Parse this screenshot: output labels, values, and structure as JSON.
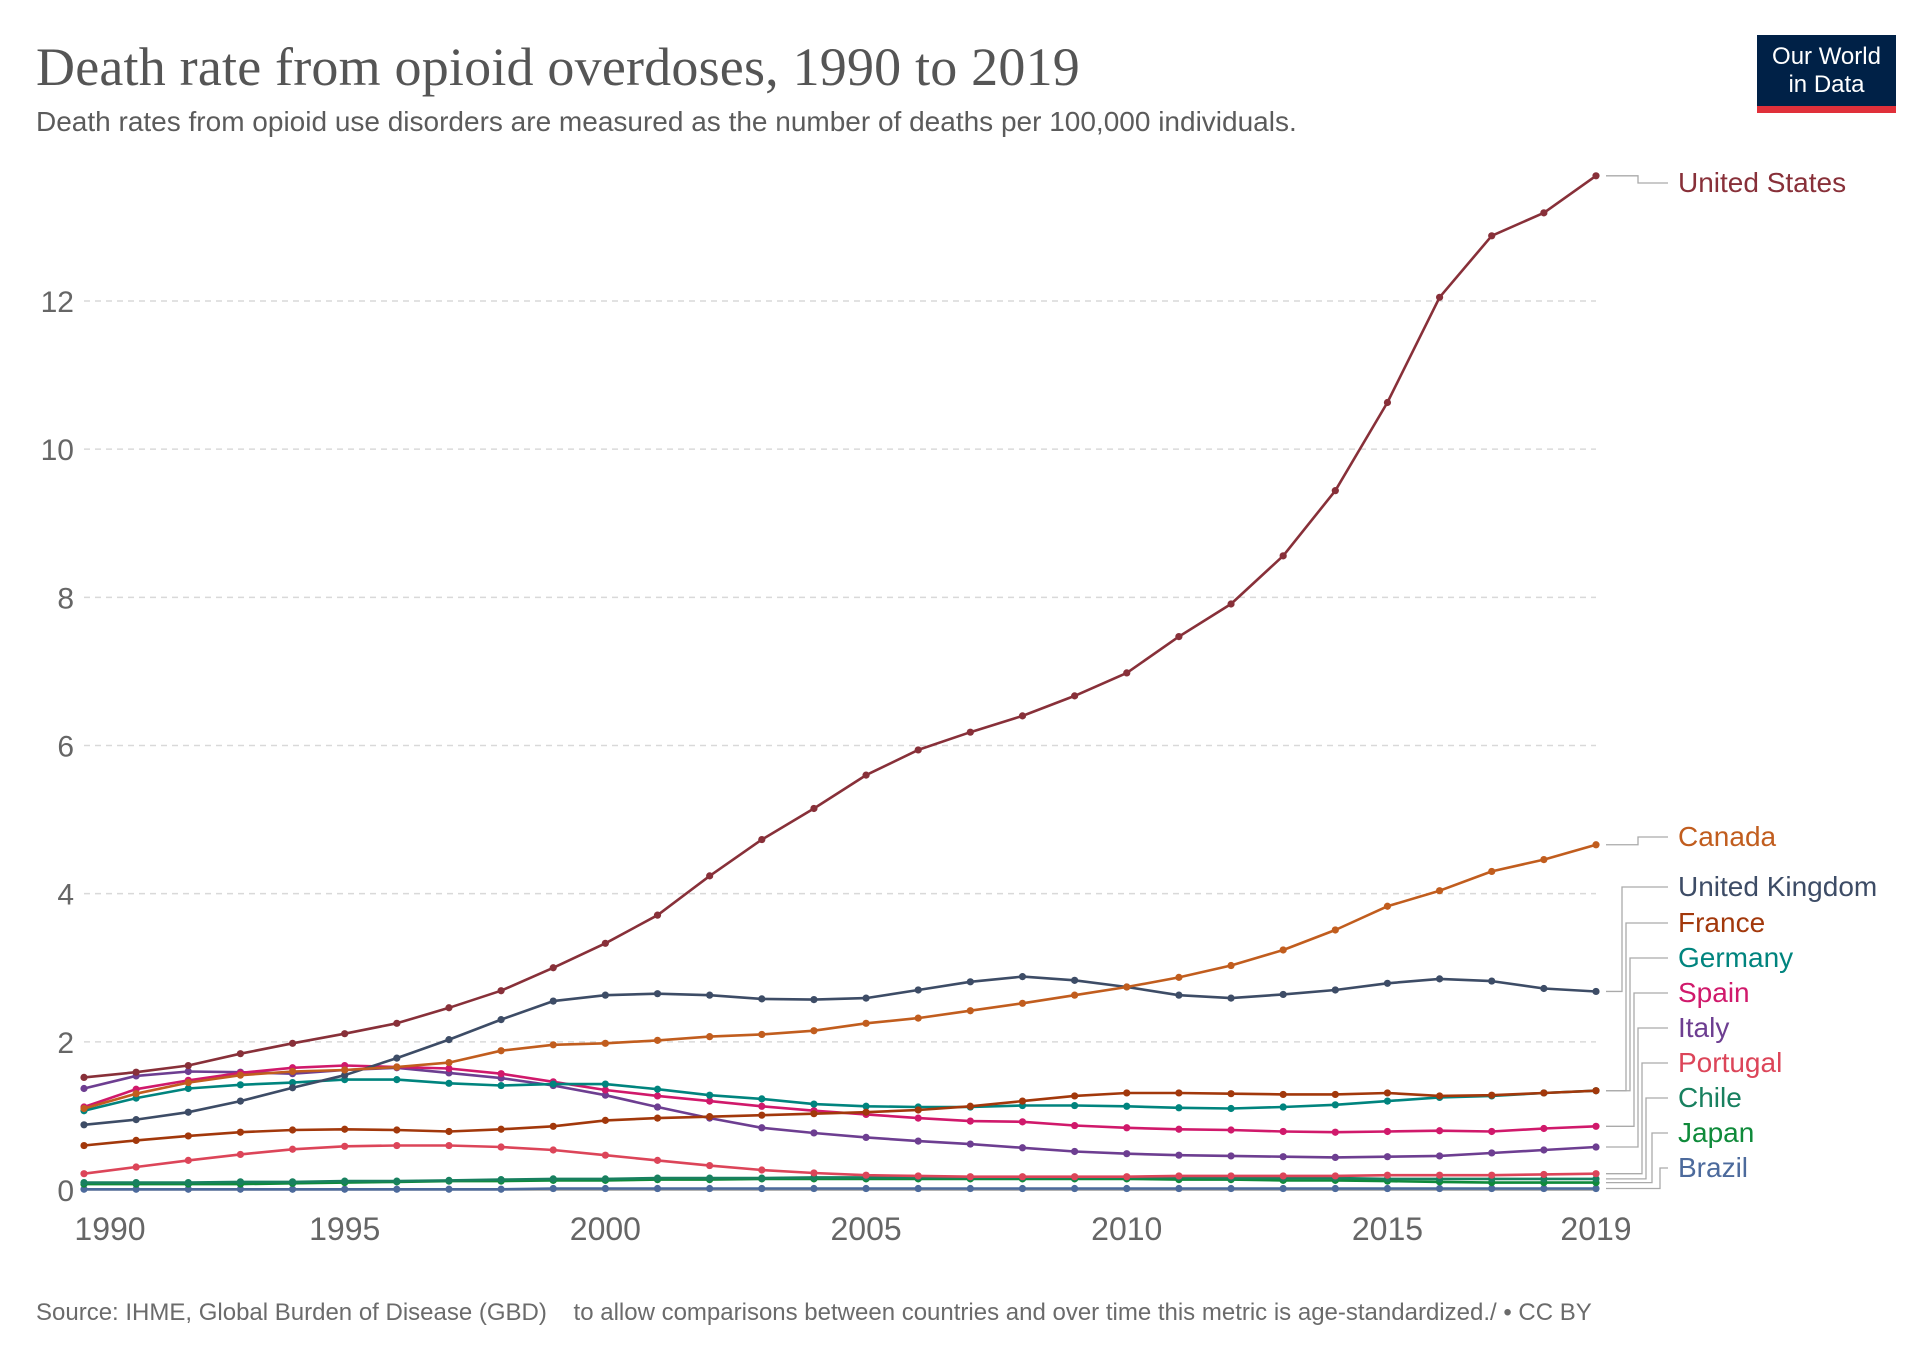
{
  "header": {
    "title": "Death rate from opioid overdoses, 1990 to 2019",
    "subtitle": "Death rates from opioid use disorders are measured as the number of deaths per 100,000 individuals."
  },
  "logo": {
    "line1": "Our World",
    "line2": "in Data"
  },
  "footer": {
    "text": "Source: IHME, Global Burden of Disease (GBD)    to allow comparisons between countries and over time this metric is age-standardized./ • CC BY"
  },
  "chart_data": {
    "type": "line",
    "x": [
      1990,
      1991,
      1992,
      1993,
      1994,
      1995,
      1996,
      1997,
      1998,
      1999,
      2000,
      2001,
      2002,
      2003,
      2004,
      2005,
      2006,
      2007,
      2008,
      2009,
      2010,
      2011,
      2012,
      2013,
      2014,
      2015,
      2016,
      2017,
      2018,
      2019
    ],
    "xticks": [
      "1990",
      "1995",
      "2000",
      "2005",
      "2010",
      "2015",
      "2019"
    ],
    "yticks": [
      "0",
      "2",
      "4",
      "6",
      "8",
      "10",
      "12"
    ],
    "ylim": [
      0,
      13.7
    ],
    "grid": "horizontal dashed",
    "legend": "right, labels at line ends",
    "series": [
      {
        "name": "United States",
        "color": "#883039",
        "values": [
          1.52,
          1.59,
          1.68,
          1.84,
          1.98,
          2.11,
          2.25,
          2.46,
          2.69,
          3.0,
          3.33,
          3.71,
          4.24,
          4.73,
          5.15,
          5.6,
          5.94,
          6.18,
          6.4,
          6.67,
          6.98,
          7.47,
          7.91,
          8.56,
          9.44,
          10.63,
          12.05,
          12.88,
          13.19,
          13.69
        ]
      },
      {
        "name": "Canada",
        "color": "#c15d1e",
        "values": [
          1.1,
          1.3,
          1.45,
          1.55,
          1.6,
          1.62,
          1.66,
          1.72,
          1.88,
          1.96,
          1.98,
          2.02,
          2.07,
          2.1,
          2.15,
          2.25,
          2.32,
          2.42,
          2.52,
          2.63,
          2.74,
          2.87,
          3.03,
          3.24,
          3.51,
          3.83,
          4.04,
          4.3,
          4.46,
          4.66
        ]
      },
      {
        "name": "United Kingdom",
        "color": "#3d4c66",
        "values": [
          0.88,
          0.95,
          1.05,
          1.2,
          1.38,
          1.55,
          1.78,
          2.03,
          2.3,
          2.55,
          2.63,
          2.65,
          2.63,
          2.58,
          2.57,
          2.59,
          2.7,
          2.81,
          2.88,
          2.83,
          2.74,
          2.63,
          2.59,
          2.64,
          2.7,
          2.79,
          2.85,
          2.82,
          2.72,
          2.68
        ]
      },
      {
        "name": "France",
        "color": "#a2380b",
        "values": [
          0.6,
          0.67,
          0.73,
          0.78,
          0.81,
          0.82,
          0.81,
          0.79,
          0.82,
          0.86,
          0.94,
          0.97,
          0.99,
          1.01,
          1.03,
          1.05,
          1.08,
          1.13,
          1.2,
          1.27,
          1.31,
          1.31,
          1.3,
          1.29,
          1.29,
          1.31,
          1.27,
          1.28,
          1.31,
          1.34
        ]
      },
      {
        "name": "Germany",
        "color": "#00847e",
        "values": [
          1.07,
          1.24,
          1.37,
          1.42,
          1.45,
          1.49,
          1.49,
          1.44,
          1.41,
          1.43,
          1.43,
          1.36,
          1.28,
          1.23,
          1.16,
          1.13,
          1.12,
          1.12,
          1.14,
          1.14,
          1.13,
          1.11,
          1.1,
          1.12,
          1.15,
          1.2,
          1.25,
          1.27,
          1.31,
          1.34
        ]
      },
      {
        "name": "Spain",
        "color": "#d0196b",
        "values": [
          1.12,
          1.36,
          1.48,
          1.58,
          1.65,
          1.68,
          1.66,
          1.64,
          1.57,
          1.46,
          1.35,
          1.27,
          1.2,
          1.13,
          1.07,
          1.02,
          0.97,
          0.93,
          0.92,
          0.87,
          0.84,
          0.82,
          0.81,
          0.79,
          0.78,
          0.79,
          0.8,
          0.79,
          0.83,
          0.86
        ]
      },
      {
        "name": "Italy",
        "color": "#6d3e91",
        "values": [
          1.37,
          1.54,
          1.6,
          1.59,
          1.57,
          1.62,
          1.65,
          1.58,
          1.51,
          1.41,
          1.28,
          1.12,
          0.97,
          0.84,
          0.77,
          0.71,
          0.66,
          0.62,
          0.57,
          0.52,
          0.49,
          0.47,
          0.46,
          0.45,
          0.44,
          0.45,
          0.46,
          0.5,
          0.54,
          0.58
        ]
      },
      {
        "name": "Portugal",
        "color": "#dc4559",
        "values": [
          0.22,
          0.31,
          0.4,
          0.48,
          0.55,
          0.59,
          0.6,
          0.6,
          0.58,
          0.54,
          0.47,
          0.4,
          0.33,
          0.27,
          0.23,
          0.2,
          0.19,
          0.18,
          0.18,
          0.18,
          0.18,
          0.19,
          0.19,
          0.19,
          0.19,
          0.2,
          0.2,
          0.2,
          0.21,
          0.22
        ]
      },
      {
        "name": "Chile",
        "color": "#18805f",
        "values": [
          0.1,
          0.1,
          0.1,
          0.11,
          0.11,
          0.12,
          0.12,
          0.13,
          0.14,
          0.15,
          0.15,
          0.16,
          0.16,
          0.16,
          0.17,
          0.17,
          0.17,
          0.17,
          0.17,
          0.17,
          0.17,
          0.17,
          0.16,
          0.16,
          0.16,
          0.15,
          0.15,
          0.15,
          0.15,
          0.15
        ]
      },
      {
        "name": "Japan",
        "color": "#0f8a3a",
        "values": [
          0.08,
          0.08,
          0.08,
          0.08,
          0.09,
          0.1,
          0.11,
          0.12,
          0.12,
          0.13,
          0.13,
          0.14,
          0.14,
          0.15,
          0.15,
          0.15,
          0.15,
          0.15,
          0.15,
          0.15,
          0.15,
          0.14,
          0.14,
          0.13,
          0.13,
          0.12,
          0.11,
          0.1,
          0.1,
          0.1
        ]
      },
      {
        "name": "Brazil",
        "color": "#4c6a9c",
        "values": [
          0.01,
          0.01,
          0.01,
          0.01,
          0.01,
          0.01,
          0.01,
          0.01,
          0.01,
          0.02,
          0.02,
          0.02,
          0.02,
          0.02,
          0.02,
          0.02,
          0.02,
          0.02,
          0.02,
          0.02,
          0.02,
          0.02,
          0.02,
          0.02,
          0.02,
          0.02,
          0.02,
          0.02,
          0.02,
          0.02
        ]
      }
    ],
    "label_order": [
      "United States",
      "Canada",
      "United Kingdom",
      "France",
      "Germany",
      "Spain",
      "Italy",
      "Portugal",
      "Chile",
      "Japan",
      "Brazil"
    ]
  }
}
